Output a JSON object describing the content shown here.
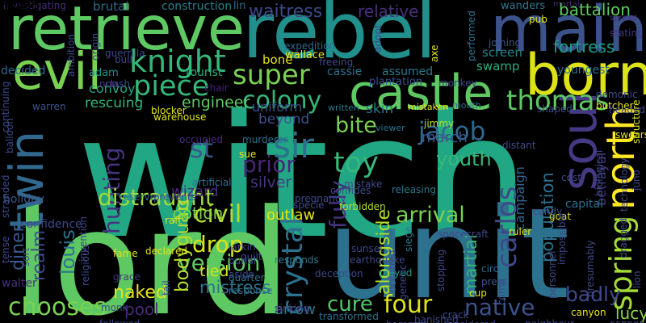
{
  "words": [
    {
      "text": "witch",
      "color": "#22a784"
    },
    {
      "text": "lord",
      "color": "#5ec962"
    },
    {
      "text": "unit",
      "color": "#2c718e"
    },
    {
      "text": "rebel",
      "color": "#21908d"
    },
    {
      "text": "retrieve",
      "color": "#5ec962"
    },
    {
      "text": "main",
      "color": "#3b528b"
    },
    {
      "text": "evil",
      "color": "#7ad151"
    },
    {
      "text": "born",
      "color": "#dde318"
    },
    {
      "text": "castle",
      "color": "#5ec962"
    },
    {
      "text": "knight",
      "color": "#35b779"
    },
    {
      "text": "piece",
      "color": "#35b779"
    },
    {
      "text": "super",
      "color": "#7ad151"
    },
    {
      "text": "twin",
      "color": "#31688e"
    },
    {
      "text": "soul",
      "color": "#443983"
    },
    {
      "text": "north",
      "color": "#fde725"
    },
    {
      "text": "spring",
      "color": "#a5db36"
    },
    {
      "text": "thomas",
      "color": "#5ec962"
    },
    {
      "text": "colony",
      "color": "#35b779"
    },
    {
      "text": "hunting",
      "color": "#46337e"
    },
    {
      "text": "sir",
      "color": "#2c718e"
    },
    {
      "text": "st",
      "color": "#38598c"
    },
    {
      "text": "jacob",
      "color": "#31688e"
    },
    {
      "text": "toy",
      "color": "#35b779"
    },
    {
      "text": "youth",
      "color": "#35b779"
    },
    {
      "text": "prior",
      "color": "#482677"
    },
    {
      "text": "bite",
      "color": "#7ad151"
    },
    {
      "text": "crystal",
      "color": "#2c718e"
    },
    {
      "text": "carlos",
      "color": "#3e4989"
    },
    {
      "text": "civil",
      "color": "#b5de2b"
    },
    {
      "text": "distraught",
      "color": "#a0da39"
    },
    {
      "text": "arrival",
      "color": "#7ad151"
    },
    {
      "text": "fully",
      "color": "#46337e"
    },
    {
      "text": "version",
      "color": "#5ec962"
    },
    {
      "text": "chooses",
      "color": "#7ad151"
    },
    {
      "text": "four",
      "color": "#dde318"
    },
    {
      "text": "cure",
      "color": "#52c569"
    },
    {
      "text": "native",
      "color": "#3b528b"
    },
    {
      "text": "drop",
      "color": "#d8e219"
    },
    {
      "text": "badly",
      "color": "#3e4989"
    },
    {
      "text": "louis",
      "color": "#2c728e"
    },
    {
      "text": "realm",
      "color": "#3e4989"
    },
    {
      "text": "diner",
      "color": "#38598c"
    },
    {
      "text": "waitress",
      "color": "#3e4989"
    },
    {
      "text": "relative",
      "color": "#472f7d"
    },
    {
      "text": "fortress",
      "color": "#1f9e89"
    },
    {
      "text": "battalion",
      "color": "#5ec962"
    },
    {
      "text": "population",
      "color": "#2c718e"
    },
    {
      "text": "martial",
      "color": "#35b779"
    },
    {
      "text": "alongside",
      "color": "#b5de2b"
    },
    {
      "text": "bodyguard",
      "color": "#b5de2b"
    },
    {
      "text": "naked",
      "color": "#e5e419"
    },
    {
      "text": "mistress",
      "color": "#2c718e"
    },
    {
      "text": "pool",
      "color": "#482878"
    },
    {
      "text": "arrow",
      "color": "#2a788e"
    },
    {
      "text": "lucy",
      "color": "#8fd744"
    },
    {
      "text": "outlaw",
      "color": "#e5e419"
    },
    {
      "text": "silver",
      "color": "#453781"
    },
    {
      "text": "potion",
      "color": "#7ad151"
    },
    {
      "text": "wizard",
      "color": "#472d7b"
    },
    {
      "text": "engineer",
      "color": "#5ec962"
    },
    {
      "text": "rescuing",
      "color": "#31b57b"
    },
    {
      "text": "convoy",
      "color": "#22a785"
    },
    {
      "text": "uniform",
      "color": "#3b528b"
    },
    {
      "text": "beyond",
      "color": "#3b528b"
    },
    {
      "text": "skin",
      "color": "#2a788e"
    },
    {
      "text": "march",
      "color": "#3b528b"
    },
    {
      "text": "tied",
      "color": "#d2e21b"
    },
    {
      "text": "walter",
      "color": "#472f7d"
    },
    {
      "text": "adam",
      "color": "#20928c"
    },
    {
      "text": "tourist",
      "color": "#29af7f"
    },
    {
      "text": "bone",
      "color": "#e5e419"
    },
    {
      "text": "decided",
      "color": "#31688e"
    },
    {
      "text": "brutal",
      "color": "#31688e"
    },
    {
      "text": "construction",
      "color": "#277f8e"
    },
    {
      "text": "lin",
      "color": "#2c718e"
    },
    {
      "text": "investigating",
      "color": "#472c7a"
    },
    {
      "text": "wanders",
      "color": "#2a788e"
    },
    {
      "text": "mortal",
      "color": "#482475"
    },
    {
      "text": "spread",
      "color": "#46327e"
    },
    {
      "text": "stating",
      "color": "#453781"
    },
    {
      "text": "screen",
      "color": "#25848e"
    },
    {
      "text": "swamp",
      "color": "#29af7f"
    },
    {
      "text": "youngest",
      "color": "#2c718e"
    },
    {
      "text": "wallace",
      "color": "#e5e419"
    },
    {
      "text": "plantation",
      "color": "#3b528b"
    },
    {
      "text": "campaign",
      "color": "#32648e"
    },
    {
      "text": "betrayal",
      "color": "#443983"
    },
    {
      "text": "capital",
      "color": "#2c718e"
    },
    {
      "text": "holiday",
      "color": "#38598c"
    },
    {
      "text": "confidence",
      "color": "#3e4989"
    },
    {
      "text": "cassie",
      "color": "#2c718e"
    },
    {
      "text": "assumed",
      "color": "#2a788e"
    },
    {
      "text": "chair",
      "color": "#482173"
    },
    {
      "text": "mistaken",
      "color": "#e5e419"
    },
    {
      "text": "mouth",
      "color": "#2c718e"
    },
    {
      "text": "written",
      "color": "#2a788e"
    },
    {
      "text": "viewer",
      "color": "#2c718e"
    },
    {
      "text": "jimmy",
      "color": "#b5de2b"
    },
    {
      "text": "grace",
      "color": "#443983"
    },
    {
      "text": "fame",
      "color": "#dde318"
    },
    {
      "text": "declared",
      "color": "#e5e419"
    },
    {
      "text": "siege",
      "color": "#2a788e"
    },
    {
      "text": "played",
      "color": "#1f9e89"
    },
    {
      "text": "cup",
      "color": "#dde318"
    },
    {
      "text": "circus",
      "color": "#2c718e"
    },
    {
      "text": "press",
      "color": "#3b528b"
    },
    {
      "text": "canyon",
      "color": "#e5e419"
    },
    {
      "text": "cannon",
      "color": "#3e4989"
    },
    {
      "text": "considered",
      "color": "#3e4989"
    },
    {
      "text": "transformed",
      "color": "#2c718e"
    },
    {
      "text": "followed",
      "color": "#3e4989"
    },
    {
      "text": "monk",
      "color": "#3e4989"
    },
    {
      "text": "sinking",
      "color": "#472c7a"
    },
    {
      "text": "hammer",
      "color": "#3e4989"
    },
    {
      "text": "banished",
      "color": "#3e4989"
    },
    {
      "text": "crack",
      "color": "#3e4989"
    },
    {
      "text": "neighbour",
      "color": "#3e4989"
    },
    {
      "text": "goat",
      "color": "#d8e219"
    },
    {
      "text": "ruler",
      "color": "#e5e419"
    },
    {
      "text": "candy",
      "color": "#3e4989"
    },
    {
      "text": "sunset",
      "color": "#3e4989"
    },
    {
      "text": "larkin",
      "color": "#3e4989"
    },
    {
      "text": "burial",
      "color": "#3e4989"
    },
    {
      "text": "guilt",
      "color": "#3e4989"
    },
    {
      "text": "raft",
      "color": "#dde318"
    },
    {
      "text": "artificial",
      "color": "#2c718e"
    },
    {
      "text": "reserve",
      "color": "#2c718e"
    },
    {
      "text": "prevents",
      "color": "#3e4989"
    },
    {
      "text": "releasing",
      "color": "#2a788e"
    },
    {
      "text": "forbidden",
      "color": "#b5de2b"
    },
    {
      "text": "murderer",
      "color": "#2c718e"
    },
    {
      "text": "sue",
      "color": "#e5e419"
    },
    {
      "text": "occupied",
      "color": "#482878"
    },
    {
      "text": "warehouse",
      "color": "#dde318"
    },
    {
      "text": "blocker",
      "color": "#dde318"
    },
    {
      "text": "warren",
      "color": "#3b528b"
    },
    {
      "text": "nun",
      "color": "#443983"
    },
    {
      "text": "clash",
      "color": "#3e4989"
    },
    {
      "text": "guerrilla",
      "color": "#3e4989"
    },
    {
      "text": "origin",
      "color": "#3e4989"
    },
    {
      "text": "religious",
      "color": "#3e4989"
    },
    {
      "text": "expedition",
      "color": "#31688e"
    },
    {
      "text": "freeing",
      "color": "#3e4989"
    },
    {
      "text": "adopt",
      "color": "#3e4989"
    },
    {
      "text": "axe",
      "color": "#dde318"
    },
    {
      "text": "performed",
      "color": "#2c718e"
    },
    {
      "text": "joining",
      "color": "#3b528b"
    },
    {
      "text": "monkey",
      "color": "#3e4989"
    },
    {
      "text": "pub",
      "color": "#dde318"
    },
    {
      "text": "demonic",
      "color": "#3e4989"
    },
    {
      "text": "butcher",
      "color": "#dde318"
    },
    {
      "text": "headed",
      "color": "#3e4989"
    },
    {
      "text": "shaped",
      "color": "#3e4989"
    },
    {
      "text": "swears",
      "color": "#dde318"
    },
    {
      "text": "distant",
      "color": "#3e4989"
    },
    {
      "text": "cost",
      "color": "#3e4989"
    },
    {
      "text": "lion",
      "color": "#3e4989"
    },
    {
      "text": "juno",
      "color": "#3e4989"
    },
    {
      "text": "structure",
      "color": "#dde318"
    },
    {
      "text": "biological",
      "color": "#3e4989"
    },
    {
      "text": "impossible",
      "color": "#3e4989"
    },
    {
      "text": "presumably",
      "color": "#3e4989"
    },
    {
      "text": "technology",
      "color": "#3e4989"
    },
    {
      "text": "personnel",
      "color": "#3e4989"
    },
    {
      "text": "dragged",
      "color": "#3e4989"
    },
    {
      "text": "coma",
      "color": "#3e4989"
    },
    {
      "text": "stopping",
      "color": "#3e4989"
    },
    {
      "text": "genetic",
      "color": "#3e4989"
    },
    {
      "text": "occurred",
      "color": "#3e4989"
    },
    {
      "text": "responds",
      "color": "#2a788e"
    },
    {
      "text": "response",
      "color": "#2c718e"
    },
    {
      "text": "quarter",
      "color": "#2c718e"
    },
    {
      "text": "aside",
      "color": "#3e4989"
    },
    {
      "text": "tail",
      "color": "#3e4989"
    },
    {
      "text": "tense",
      "color": "#3e4989"
    },
    {
      "text": "sort",
      "color": "#3e4989"
    },
    {
      "text": "stranded",
      "color": "#3e4989"
    },
    {
      "text": "continuing",
      "color": "#3e4989"
    },
    {
      "text": "ambition",
      "color": "#3e4989"
    },
    {
      "text": "deception",
      "color": "#3e4989"
    },
    {
      "text": "earthquake",
      "color": "#3e4989"
    },
    {
      "text": "spacecraft",
      "color": "#3e4989"
    },
    {
      "text": "pregnancy",
      "color": "#3e4989"
    },
    {
      "text": "mistake",
      "color": "#3e4989"
    },
    {
      "text": "confides",
      "color": "#3e4989"
    },
    {
      "text": "specie",
      "color": "#3e4989"
    },
    {
      "text": "invention",
      "color": "#3e4989"
    },
    {
      "text": "balloon",
      "color": "#3e4989"
    },
    {
      "text": "bull",
      "color": "#3e4989"
    },
    {
      "text": "row",
      "color": "#3e4989"
    },
    {
      "text": "falling",
      "color": "#3e4989"
    },
    {
      "text": "belt",
      "color": "#3e4989"
    },
    {
      "text": "unite",
      "color": "#3e4989"
    }
  ]
}
